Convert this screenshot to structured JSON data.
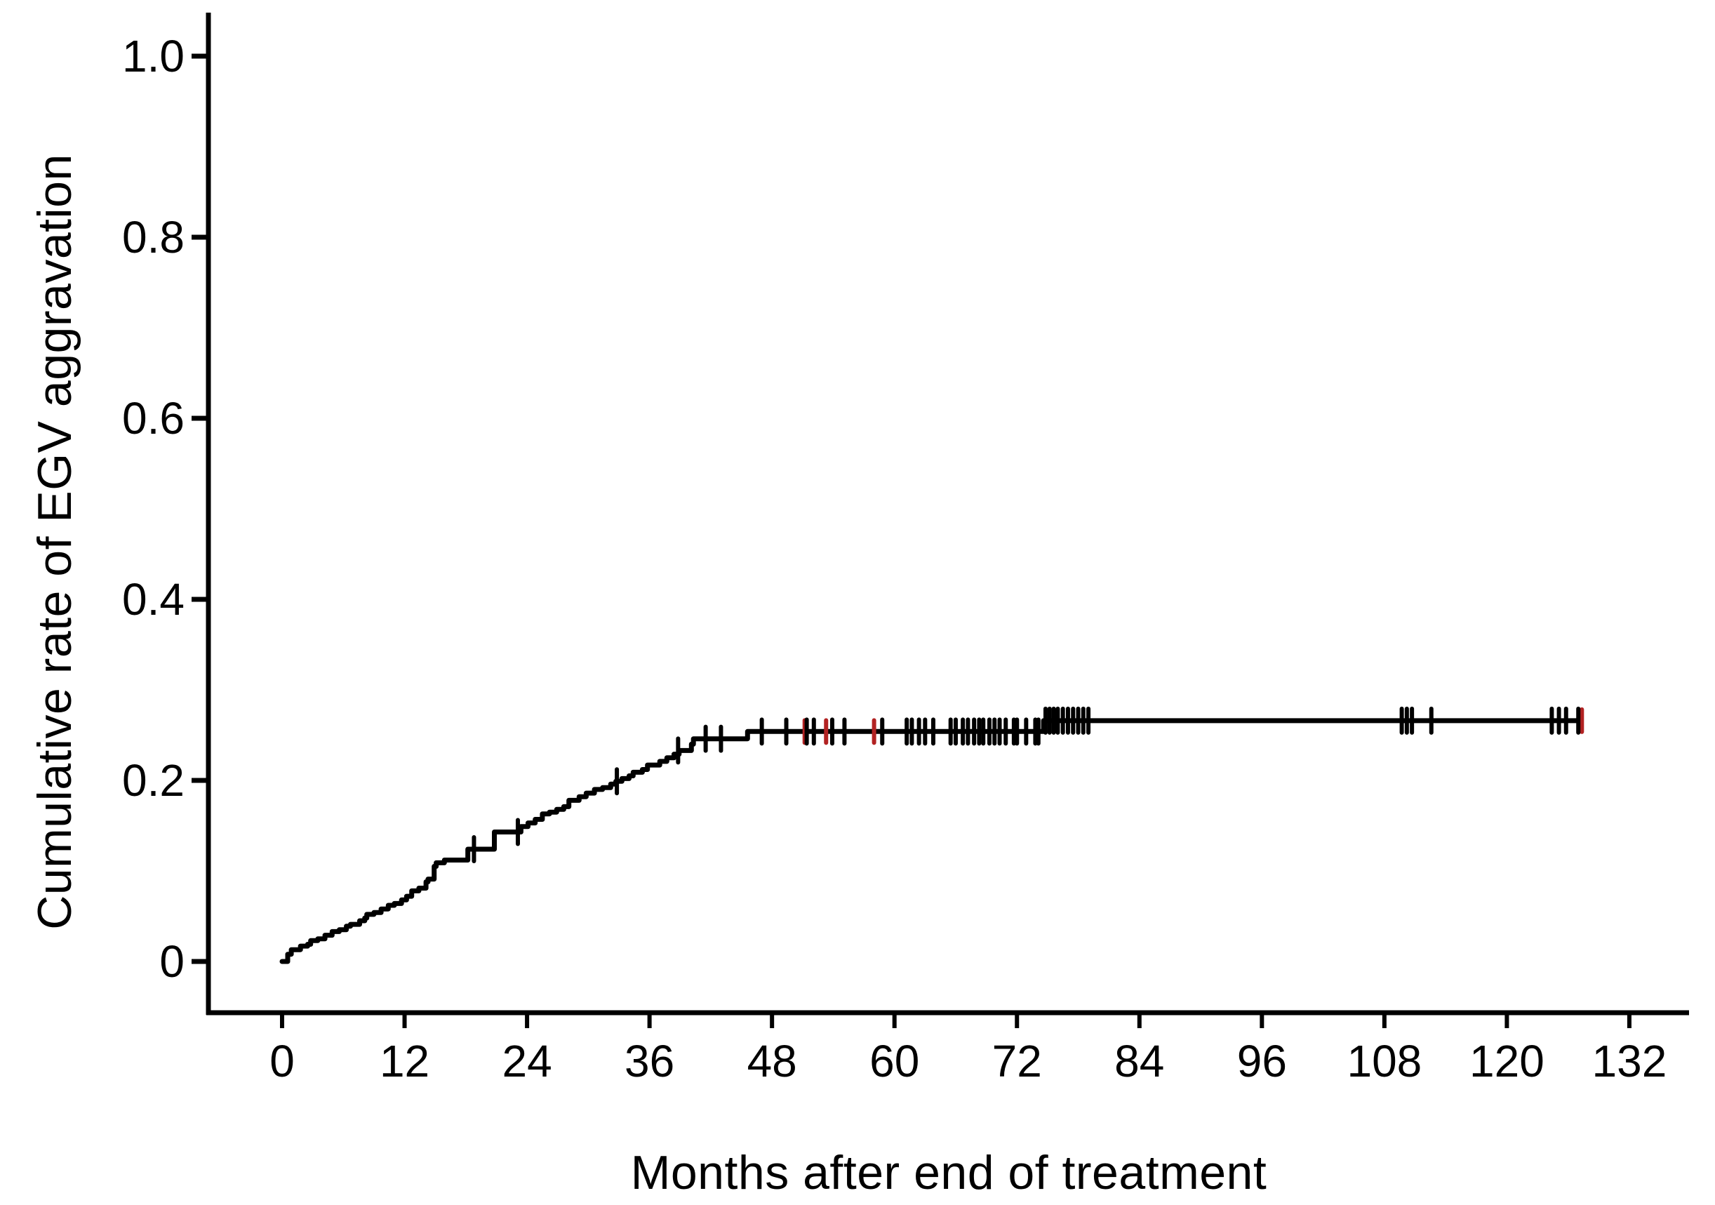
{
  "figure": {
    "background": "#ffffff",
    "text_color": "#000000"
  },
  "chart_data": {
    "type": "line",
    "subtype": "kaplan-meier-step",
    "title": "",
    "xlabel": "Months after end of treatment",
    "ylabel": "Cumulative rate of EGV aggravation",
    "grid": false,
    "legend": null,
    "x_axis": {
      "range": [
        0,
        132
      ],
      "ticks": [
        0,
        12,
        24,
        36,
        48,
        60,
        72,
        84,
        96,
        108,
        120,
        132
      ],
      "labels": [
        "0",
        "12",
        "24",
        "36",
        "48",
        "60",
        "72",
        "84",
        "96",
        "108",
        "120",
        "132"
      ]
    },
    "y_axis": {
      "range": [
        0,
        1.0
      ],
      "ticks": [
        0,
        0.2,
        0.4,
        0.6,
        0.8,
        1.0
      ],
      "labels": [
        "0",
        "0.2",
        "0.4",
        "0.6",
        "0.8",
        "1.0"
      ]
    },
    "series": [
      {
        "name": "Cumulative rate of EGV aggravation",
        "color": "#000000",
        "step": true,
        "points": [
          [
            0,
            0
          ],
          [
            0.55,
            0.008
          ],
          [
            0.9,
            0.013
          ],
          [
            1.8,
            0.017
          ],
          [
            2.5,
            0.019
          ],
          [
            2.8,
            0.023
          ],
          [
            3.5,
            0.025
          ],
          [
            4.2,
            0.029
          ],
          [
            4.9,
            0.033
          ],
          [
            5.6,
            0.035
          ],
          [
            6.3,
            0.039
          ],
          [
            6.7,
            0.041
          ],
          [
            7.6,
            0.045
          ],
          [
            8.1,
            0.048
          ],
          [
            8.3,
            0.052
          ],
          [
            9.0,
            0.054
          ],
          [
            9.7,
            0.058
          ],
          [
            10.4,
            0.062
          ],
          [
            11.0,
            0.064
          ],
          [
            11.7,
            0.068
          ],
          [
            12.2,
            0.072
          ],
          [
            12.7,
            0.078
          ],
          [
            13.4,
            0.081
          ],
          [
            14.1,
            0.088
          ],
          [
            14.3,
            0.091
          ],
          [
            14.9,
            0.105
          ],
          [
            15.1,
            0.109
          ],
          [
            15.9,
            0.112
          ],
          [
            18.2,
            0.124
          ],
          [
            20.8,
            0.143
          ],
          [
            23.4,
            0.149
          ],
          [
            24.1,
            0.153
          ],
          [
            24.8,
            0.157
          ],
          [
            25.5,
            0.163
          ],
          [
            26.2,
            0.165
          ],
          [
            26.9,
            0.168
          ],
          [
            27.6,
            0.171
          ],
          [
            28.1,
            0.178
          ],
          [
            29.1,
            0.182
          ],
          [
            29.8,
            0.186
          ],
          [
            30.6,
            0.19
          ],
          [
            31.4,
            0.192
          ],
          [
            32.2,
            0.196
          ],
          [
            32.7,
            0.199
          ],
          [
            33.3,
            0.202
          ],
          [
            34.0,
            0.205
          ],
          [
            34.4,
            0.209
          ],
          [
            35.3,
            0.212
          ],
          [
            35.8,
            0.217
          ],
          [
            37.0,
            0.221
          ],
          [
            37.7,
            0.225
          ],
          [
            38.4,
            0.229
          ],
          [
            38.9,
            0.233
          ],
          [
            40.1,
            0.24
          ],
          [
            40.3,
            0.246
          ],
          [
            45.6,
            0.254
          ],
          [
            74.6,
            0.266
          ],
          [
            127.0,
            0.266
          ]
        ]
      }
    ],
    "censor_marks": {
      "black_color": "#000000",
      "red_color": "#b22222",
      "black": [
        [
          18.8,
          0.124
        ],
        [
          23.1,
          0.143
        ],
        [
          32.8,
          0.199
        ],
        [
          38.8,
          0.233
        ],
        [
          41.5,
          0.246
        ],
        [
          43.0,
          0.246
        ],
        [
          47.0,
          0.254
        ],
        [
          49.4,
          0.254
        ],
        [
          51.4,
          0.254
        ],
        [
          52.1,
          0.254
        ],
        [
          53.9,
          0.254
        ],
        [
          55.1,
          0.254
        ],
        [
          58.8,
          0.254
        ],
        [
          61.2,
          0.254
        ],
        [
          61.7,
          0.254
        ],
        [
          62.4,
          0.254
        ],
        [
          63.0,
          0.254
        ],
        [
          63.8,
          0.254
        ],
        [
          65.5,
          0.254
        ],
        [
          66.0,
          0.254
        ],
        [
          66.7,
          0.254
        ],
        [
          67.2,
          0.254
        ],
        [
          67.8,
          0.254
        ],
        [
          68.3,
          0.254
        ],
        [
          68.7,
          0.254
        ],
        [
          69.3,
          0.254
        ],
        [
          69.8,
          0.254
        ],
        [
          70.3,
          0.254
        ],
        [
          70.9,
          0.254
        ],
        [
          71.7,
          0.254
        ],
        [
          72.0,
          0.254
        ],
        [
          72.9,
          0.254
        ],
        [
          73.8,
          0.254
        ],
        [
          74.1,
          0.254
        ],
        [
          74.8,
          0.266
        ],
        [
          75.2,
          0.266
        ],
        [
          75.6,
          0.266
        ],
        [
          76.0,
          0.266
        ],
        [
          76.5,
          0.266
        ],
        [
          77.0,
          0.266
        ],
        [
          77.5,
          0.266
        ],
        [
          78.0,
          0.266
        ],
        [
          78.5,
          0.266
        ],
        [
          79.0,
          0.266
        ],
        [
          109.7,
          0.266
        ],
        [
          110.2,
          0.266
        ],
        [
          110.7,
          0.266
        ],
        [
          112.6,
          0.266
        ],
        [
          124.4,
          0.266
        ],
        [
          125.1,
          0.266
        ],
        [
          125.8,
          0.266
        ],
        [
          127.0,
          0.266
        ]
      ],
      "red": [
        [
          51.2,
          0.254
        ],
        [
          53.3,
          0.254
        ],
        [
          58.0,
          0.254
        ],
        [
          127.35,
          0.266
        ]
      ]
    }
  }
}
